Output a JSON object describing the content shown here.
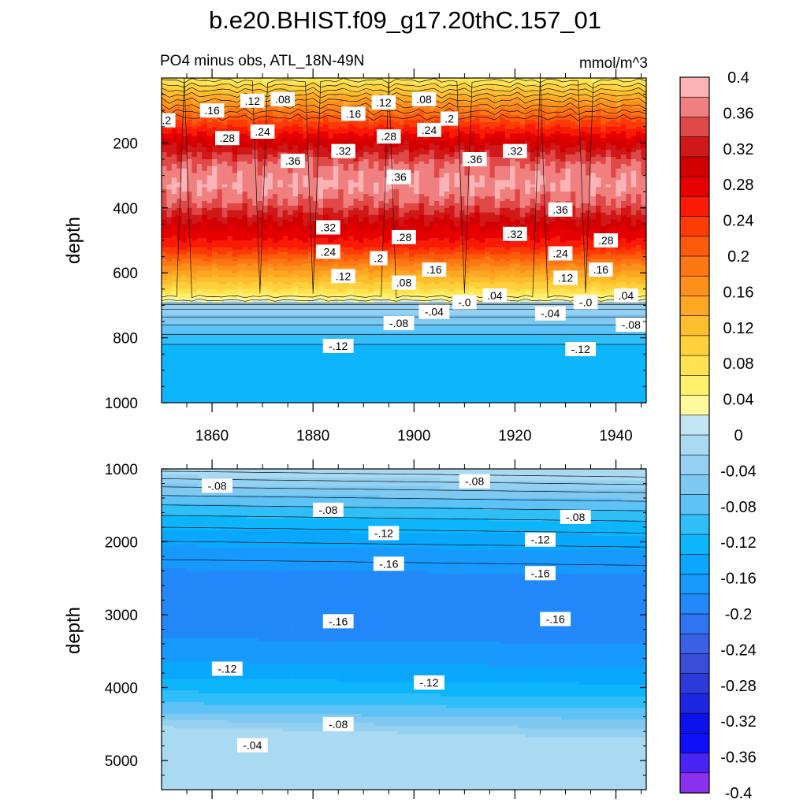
{
  "title": "b.e20.BHIST.f09_g17.20thC.157_01",
  "subtitle_left": "PO4 minus obs, ATL_18N-49N",
  "subtitle_right": "mmol/m^3",
  "chart_data": [
    {
      "type": "heatmap",
      "name": "upper-panel",
      "xlabel": "",
      "ylabel": "depth",
      "xlim": [
        1850,
        1946
      ],
      "ylim": [
        1000,
        0
      ],
      "xticks": [
        1860,
        1880,
        1900,
        1920,
        1940
      ],
      "yticks": [
        200,
        400,
        600,
        800,
        1000
      ],
      "depth_profile": [
        {
          "depth": 0,
          "value": 0.06
        },
        {
          "depth": 60,
          "value": 0.14
        },
        {
          "depth": 130,
          "value": 0.22
        },
        {
          "depth": 200,
          "value": 0.3
        },
        {
          "depth": 270,
          "value": 0.36
        },
        {
          "depth": 330,
          "value": 0.38
        },
        {
          "depth": 390,
          "value": 0.35
        },
        {
          "depth": 450,
          "value": 0.3
        },
        {
          "depth": 520,
          "value": 0.25
        },
        {
          "depth": 590,
          "value": 0.16
        },
        {
          "depth": 650,
          "value": 0.09
        },
        {
          "depth": 690,
          "value": 0.02
        },
        {
          "depth": 700,
          "value": -0.02
        },
        {
          "depth": 760,
          "value": -0.07
        },
        {
          "depth": 820,
          "value": -0.11
        },
        {
          "depth": 880,
          "value": -0.125
        },
        {
          "depth": 1000,
          "value": -0.13
        }
      ],
      "contour_labels": [
        {
          "text": ".2",
          "x": 1851,
          "depth": 130
        },
        {
          "text": ".16",
          "x": 1860,
          "depth": 100
        },
        {
          "text": ".12",
          "x": 1868,
          "depth": 70
        },
        {
          "text": ".08",
          "x": 1874,
          "depth": 65
        },
        {
          "text": ".16",
          "x": 1888,
          "depth": 110
        },
        {
          "text": ".12",
          "x": 1894,
          "depth": 75
        },
        {
          "text": ".08",
          "x": 1902,
          "depth": 65
        },
        {
          "text": ".2",
          "x": 1907,
          "depth": 125
        },
        {
          "text": ".28",
          "x": 1863,
          "depth": 185
        },
        {
          "text": ".24",
          "x": 1870,
          "depth": 165
        },
        {
          "text": ".28",
          "x": 1895,
          "depth": 180
        },
        {
          "text": ".24",
          "x": 1903,
          "depth": 160
        },
        {
          "text": ".32",
          "x": 1886,
          "depth": 225
        },
        {
          "text": ".36",
          "x": 1876,
          "depth": 255
        },
        {
          "text": ".36",
          "x": 1912,
          "depth": 250
        },
        {
          "text": ".32",
          "x": 1920,
          "depth": 225
        },
        {
          "text": ".36",
          "x": 1897,
          "depth": 305
        },
        {
          "text": ".36",
          "x": 1929,
          "depth": 405
        },
        {
          "text": ".32",
          "x": 1883,
          "depth": 460
        },
        {
          "text": ".28",
          "x": 1898,
          "depth": 490
        },
        {
          "text": ".32",
          "x": 1920,
          "depth": 480
        },
        {
          "text": ".28",
          "x": 1938,
          "depth": 500
        },
        {
          "text": ".24",
          "x": 1883,
          "depth": 535
        },
        {
          "text": ".2",
          "x": 1893,
          "depth": 555
        },
        {
          "text": ".24",
          "x": 1929,
          "depth": 540
        },
        {
          "text": ".12",
          "x": 1886,
          "depth": 610
        },
        {
          "text": ".16",
          "x": 1904,
          "depth": 590
        },
        {
          "text": ".16",
          "x": 1937,
          "depth": 590
        },
        {
          "text": ".08",
          "x": 1898,
          "depth": 630
        },
        {
          "text": ".12",
          "x": 1930,
          "depth": 615
        },
        {
          "text": ".04",
          "x": 1916,
          "depth": 670
        },
        {
          "text": ".04",
          "x": 1942,
          "depth": 670
        },
        {
          "text": "-.0",
          "x": 1910,
          "depth": 690
        },
        {
          "text": "-.0",
          "x": 1934,
          "depth": 690
        },
        {
          "text": "-.04",
          "x": 1904,
          "depth": 720
        },
        {
          "text": "-.04",
          "x": 1927,
          "depth": 725
        },
        {
          "text": "-.08",
          "x": 1897,
          "depth": 755
        },
        {
          "text": "-.08",
          "x": 1943,
          "depth": 760
        },
        {
          "text": "-.12",
          "x": 1885,
          "depth": 825
        },
        {
          "text": "-.12",
          "x": 1933,
          "depth": 835
        }
      ]
    },
    {
      "type": "heatmap",
      "name": "lower-panel",
      "xlabel": "",
      "ylabel": "depth",
      "xlim": [
        1850,
        1946
      ],
      "ylim": [
        5400,
        1000
      ],
      "yticks": [
        1000,
        2000,
        3000,
        4000,
        5000
      ],
      "contour_labels": [
        {
          "text": "-.08",
          "x": 1861,
          "depth": 1230
        },
        {
          "text": "-.08",
          "x": 1912,
          "depth": 1170
        },
        {
          "text": "-.08",
          "x": 1883,
          "depth": 1560
        },
        {
          "text": "-.08",
          "x": 1932,
          "depth": 1660
        },
        {
          "text": "-.12",
          "x": 1894,
          "depth": 1880
        },
        {
          "text": "-.12",
          "x": 1925,
          "depth": 1970
        },
        {
          "text": "-.16",
          "x": 1895,
          "depth": 2300
        },
        {
          "text": "-.16",
          "x": 1925,
          "depth": 2430
        },
        {
          "text": "-.16",
          "x": 1885,
          "depth": 3090
        },
        {
          "text": "-.16",
          "x": 1928,
          "depth": 3060
        },
        {
          "text": "-.12",
          "x": 1863,
          "depth": 3740
        },
        {
          "text": "-.12",
          "x": 1903,
          "depth": 3930
        },
        {
          "text": "-.08",
          "x": 1885,
          "depth": 4500
        },
        {
          "text": "-.04",
          "x": 1868,
          "depth": 4790
        }
      ]
    }
  ],
  "colorbar": {
    "levels": [
      "0.4",
      "0.36",
      "0.32",
      "0.28",
      "0.24",
      "0.2",
      "0.16",
      "0.12",
      "0.08",
      "0.04",
      "0",
      "-0.04",
      "-0.08",
      "-0.12",
      "-0.16",
      "-0.2",
      "-0.24",
      "-0.28",
      "-0.32",
      "-0.36",
      "-0.4"
    ],
    "colors": [
      "#fbb3b6",
      "#f08080",
      "#e04848",
      "#d01818",
      "#d20000",
      "#e60000",
      "#fa1a05",
      "#fc3b07",
      "#fd5a0b",
      "#fd7712",
      "#fd901a",
      "#fea722",
      "#febd2c",
      "#fed13c",
      "#fee250",
      "#fef06a",
      "#fefa9c",
      "#c4e6f4",
      "#a9daf1",
      "#94d0f1",
      "#7ec8f2",
      "#5ec2f6",
      "#2fbef8",
      "#0db5fc",
      "#0aa7fe",
      "#1799fe",
      "#2388fa",
      "#2f74f2",
      "#3a60e6",
      "#3a4dda",
      "#2b3ad8",
      "#1b27e0",
      "#0c12ec",
      "#1010f8",
      "#4a24f4",
      "#8a30ee"
    ]
  }
}
